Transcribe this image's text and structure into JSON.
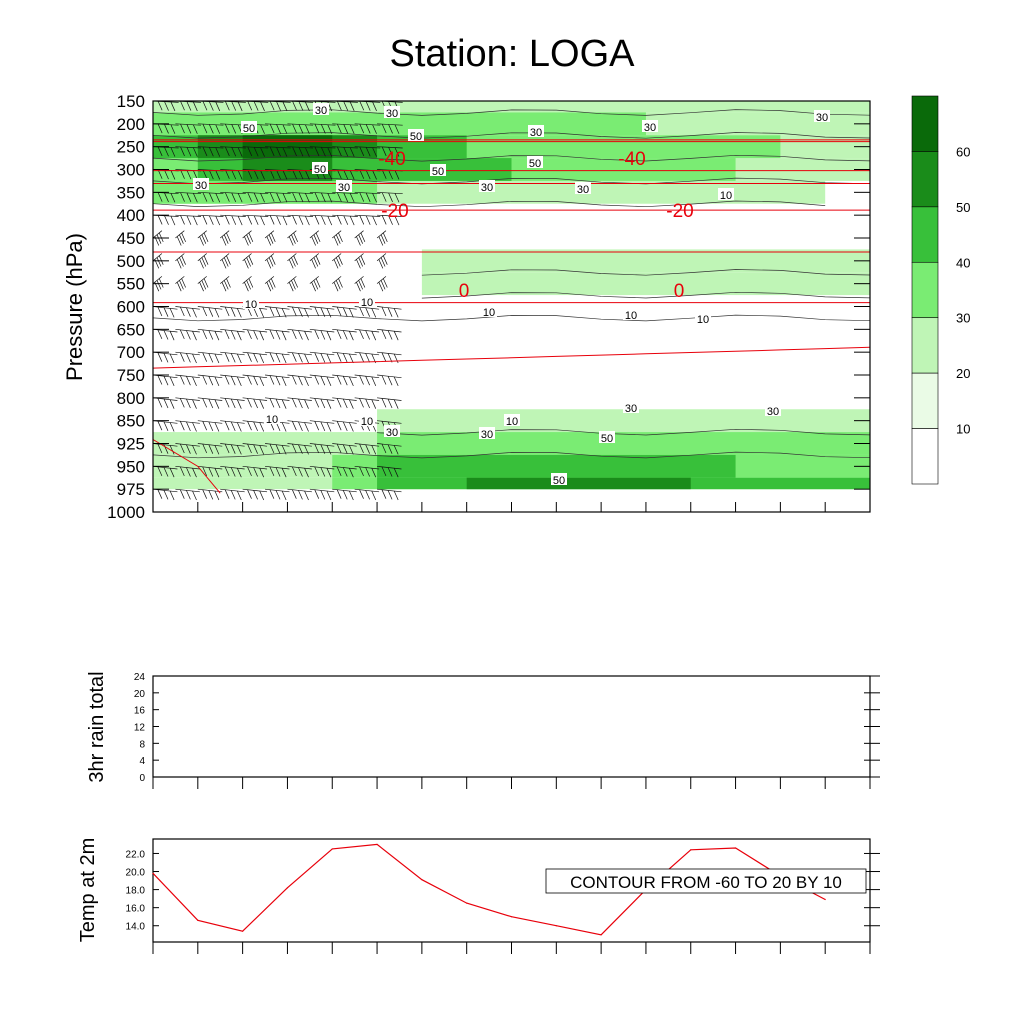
{
  "title": "Station: LOGA",
  "chart_data": [
    {
      "type": "heatmap",
      "name": "pressure-time cross section",
      "ylabel": "Pressure (hPa)",
      "y_ticks": [
        150,
        200,
        250,
        300,
        350,
        400,
        450,
        500,
        550,
        600,
        650,
        700,
        750,
        800,
        850,
        925,
        950,
        975,
        1000
      ],
      "x_tick_count": 17,
      "shading": {
        "colorbar_levels": [
          10,
          20,
          30,
          40,
          50,
          60
        ],
        "colors": [
          "#ffffff",
          "#eafbe6",
          "#bff5b6",
          "#7aec73",
          "#38c03a",
          "#1a8c1a",
          "#0a6a0a"
        ],
        "regions": [
          {
            "level": 20,
            "desc": "upper jet envelope",
            "rows": [
              [
                150,
                0,
                16
              ],
              [
                200,
                0,
                16
              ],
              [
                250,
                0,
                16
              ],
              [
                300,
                0,
                16
              ],
              [
                350,
                0,
                15
              ]
            ]
          },
          {
            "level": 30,
            "desc": "jet core outer",
            "rows": [
              [
                200,
                0,
                11
              ],
              [
                250,
                0,
                14
              ],
              [
                300,
                0,
                13
              ],
              [
                350,
                0,
                5
              ]
            ]
          },
          {
            "level": 40,
            "desc": "jet core",
            "rows": [
              [
                250,
                0,
                7
              ],
              [
                300,
                1,
                8
              ]
            ]
          },
          {
            "level": 50,
            "desc": "jet max",
            "rows": [
              [
                250,
                1,
                5
              ],
              [
                300,
                2,
                4
              ]
            ]
          },
          {
            "level": 60,
            "desc": "jet peak",
            "rows": [
              [
                250,
                2,
                4
              ]
            ]
          },
          {
            "level": 20,
            "desc": "mid band",
            "rows": [
              [
                500,
                6,
                16
              ],
              [
                550,
                6,
                16
              ]
            ]
          },
          {
            "level": 20,
            "desc": "low level",
            "rows": [
              [
                850,
                5,
                16
              ],
              [
                925,
                0,
                16
              ],
              [
                950,
                0,
                16
              ],
              [
                975,
                0,
                16
              ]
            ]
          },
          {
            "level": 30,
            "desc": "low level 30",
            "rows": [
              [
                925,
                5,
                16
              ],
              [
                950,
                4,
                16
              ],
              [
                975,
                4,
                16
              ]
            ]
          },
          {
            "level": 40,
            "desc": "low level 40",
            "rows": [
              [
                950,
                5,
                13
              ],
              [
                975,
                5,
                16
              ]
            ]
          },
          {
            "level": 50,
            "desc": "low level 50",
            "rows": [
              [
                975,
                7,
                12
              ]
            ]
          }
        ]
      },
      "wind_contour_labels": [
        "30",
        "30",
        "30",
        "30",
        "30",
        "50",
        "50",
        "50",
        "50",
        "50",
        "30",
        "30",
        "30",
        "30",
        "10",
        "10",
        "10",
        "10",
        "10",
        "10",
        "10",
        "10",
        "10",
        "30",
        "30",
        "30",
        "30",
        "50"
      ],
      "temperature_contours": {
        "color": "#e8000b",
        "levels": [
          -40,
          -40,
          -20,
          -20,
          0,
          0
        ],
        "labels": [
          "-40",
          "-40",
          "-20",
          "-20",
          "0",
          "0"
        ]
      },
      "colorbar": {
        "labels": [
          "60",
          "50",
          "40",
          "30",
          "20",
          "10"
        ]
      },
      "wind_barbs": {
        "present_columns": [
          0,
          1,
          2,
          3,
          4,
          5
        ]
      }
    },
    {
      "type": "line",
      "ylabel": "3hr rain total",
      "y_ticks": [
        "0",
        "4",
        "8",
        "12",
        "16",
        "20",
        "24"
      ],
      "ylim": [
        0,
        24
      ],
      "x_tick_count": 17,
      "series": []
    },
    {
      "type": "line",
      "ylabel": "Temp at 2m",
      "y_ticks": [
        "14.0",
        "16.0",
        "18.0",
        "20.0",
        "22.0"
      ],
      "ylim": [
        12.2,
        23.6
      ],
      "x_tick_count": 17,
      "series": [
        {
          "color": "#e8000b",
          "values": [
            19.8,
            14.6,
            13.4,
            18.2,
            22.5,
            23.0,
            19.1,
            16.5,
            15.0,
            14.0,
            13.0,
            18.0,
            22.4,
            22.6,
            19.5,
            16.9
          ]
        }
      ],
      "annotation": "CONTOUR FROM -60 TO 20 BY 10"
    }
  ]
}
